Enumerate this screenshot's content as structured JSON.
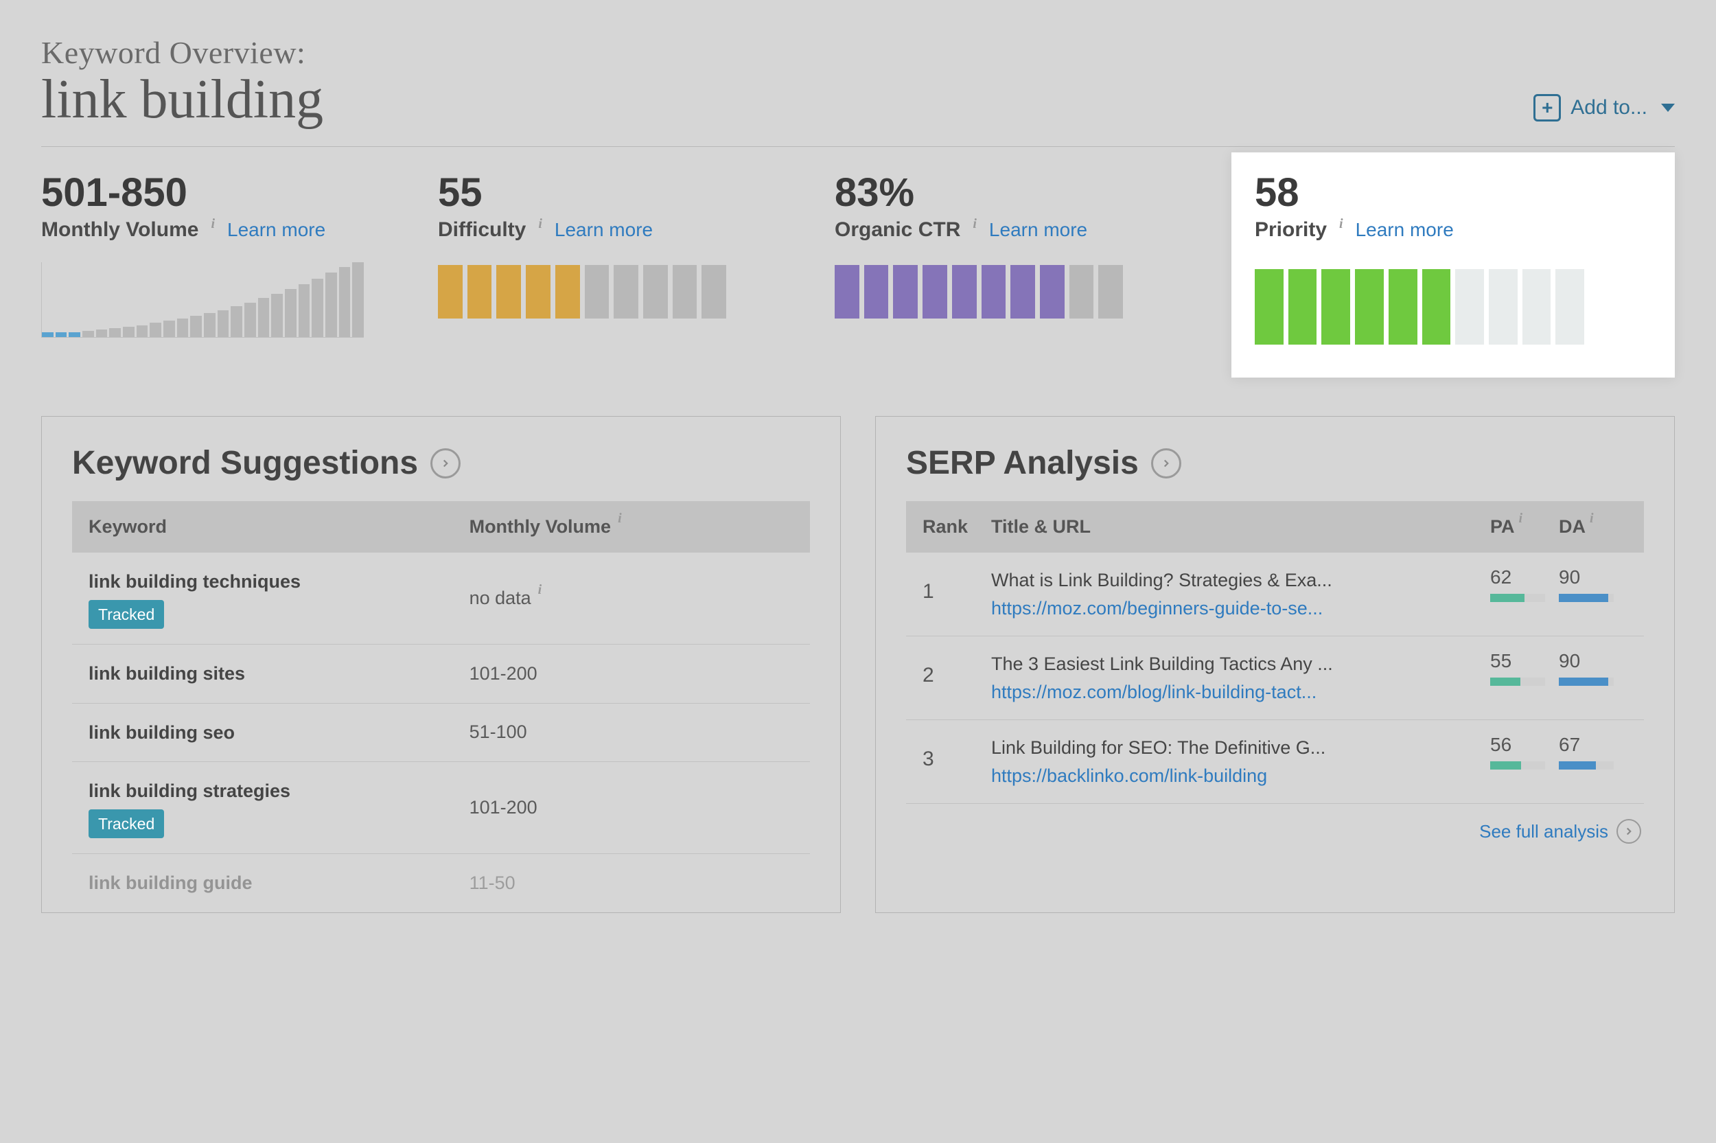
{
  "header": {
    "overline": "Keyword Overview:",
    "keyword": "link building",
    "addto_label": "Add to..."
  },
  "metrics": {
    "volume": {
      "value": "501-850",
      "label": "Monthly Volume",
      "learn_more": "Learn more",
      "chart": {
        "type": "bar",
        "bar_count": 24,
        "heights_pct": [
          6,
          6,
          6,
          8,
          10,
          12,
          14,
          16,
          19,
          22,
          25,
          28,
          32,
          36,
          41,
          46,
          52,
          58,
          64,
          71,
          78,
          86,
          94,
          100
        ],
        "bar_color": "#b8b8b8",
        "accent_color": "#5aa3d0",
        "accent_indices": [
          0,
          1,
          2
        ],
        "border_color": "#c0c0c0"
      }
    },
    "difficulty": {
      "value": "55",
      "label": "Difficulty",
      "learn_more": "Learn more",
      "segments": {
        "total": 10,
        "filled": 5,
        "fill_color": "#d6a546",
        "empty_color": "#b8b8b8"
      }
    },
    "ctr": {
      "value": "83%",
      "label": "Organic CTR",
      "learn_more": "Learn more",
      "segments": {
        "total": 10,
        "filled": 8,
        "fill_color": "#8574b8",
        "empty_color": "#b8b8b8"
      }
    },
    "priority": {
      "value": "58",
      "label": "Priority",
      "learn_more": "Learn more",
      "highlighted": true,
      "segments": {
        "total": 10,
        "filled": 6,
        "fill_color": "#6fc93f",
        "empty_color": "#e8ecec"
      }
    }
  },
  "keyword_suggestions": {
    "title": "Keyword Suggestions",
    "columns": {
      "keyword": "Keyword",
      "volume": "Monthly Volume"
    },
    "no_data_label": "no data",
    "tracked_badge": "Tracked",
    "rows": [
      {
        "keyword": "link building techniques",
        "volume": "no data",
        "tracked": true,
        "show_info": true
      },
      {
        "keyword": "link building sites",
        "volume": "101-200",
        "tracked": false
      },
      {
        "keyword": "link building seo",
        "volume": "51-100",
        "tracked": false
      },
      {
        "keyword": "link building strategies",
        "volume": "101-200",
        "tracked": true
      },
      {
        "keyword": "link building guide",
        "volume": "11-50",
        "tracked": false,
        "faded": true
      }
    ]
  },
  "serp_analysis": {
    "title": "SERP Analysis",
    "columns": {
      "rank": "Rank",
      "title_url": "Title & URL",
      "pa": "PA",
      "da": "DA"
    },
    "see_full_label": "See full analysis",
    "pa_bar_color": "#56b89a",
    "da_bar_color": "#4a8fc7",
    "bar_bg_color": "#d0d0d0",
    "rows": [
      {
        "rank": "1",
        "title": "What is Link Building? Strategies & Exa...",
        "url": "https://moz.com/beginners-guide-to-se...",
        "pa": 62,
        "da": 90
      },
      {
        "rank": "2",
        "title": "The 3 Easiest Link Building Tactics Any ...",
        "url": "https://moz.com/blog/link-building-tact...",
        "pa": 55,
        "da": 90
      },
      {
        "rank": "3",
        "title": "Link Building for SEO: The Definitive G...",
        "url": "https://backlinko.com/link-building",
        "pa": 56,
        "da": 67
      }
    ]
  },
  "colors": {
    "page_bg": "#d6d6d6",
    "text_primary": "#3b3b3b",
    "text_secondary": "#555555",
    "link": "#2f7bbf",
    "accent_teal": "#2f6f93",
    "tracked_bg": "#3a97ad"
  }
}
